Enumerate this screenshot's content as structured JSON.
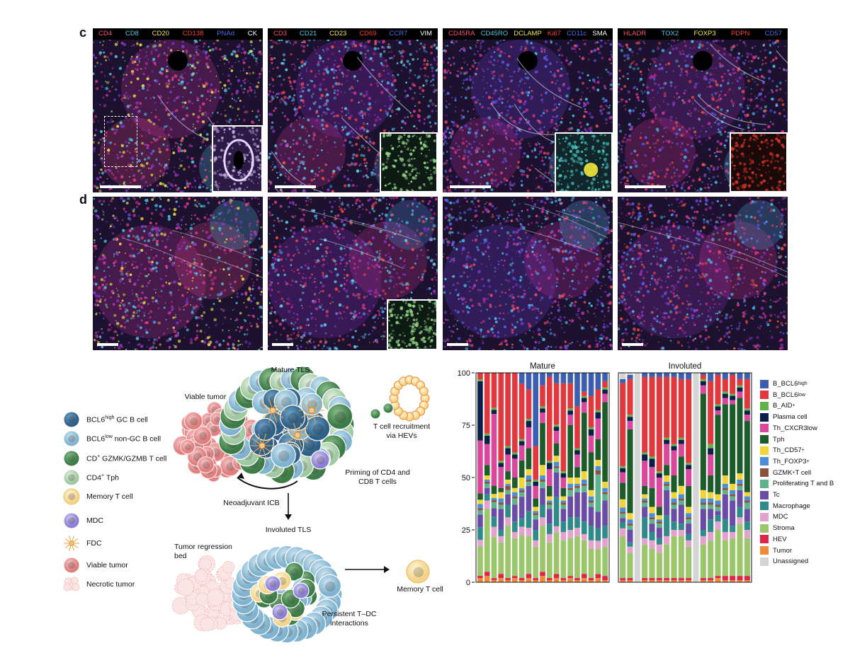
{
  "panel_labels": {
    "c": "c",
    "d": "d"
  },
  "marker_panels": [
    {
      "markers": [
        {
          "text": "CD4",
          "color": "#ff4d7a"
        },
        {
          "text": "CD8",
          "color": "#49c9e8"
        },
        {
          "text": "CD20",
          "color": "#f5e64a"
        },
        {
          "text": "CD138",
          "color": "#ff3b30"
        },
        {
          "text": "PNAd",
          "color": "#4a6cf0"
        },
        {
          "text": "CK",
          "color": "#ffffff"
        }
      ]
    },
    {
      "markers": [
        {
          "text": "CD3",
          "color": "#ff4d7a"
        },
        {
          "text": "CD21",
          "color": "#49c9e8"
        },
        {
          "text": "CD23",
          "color": "#f5e64a"
        },
        {
          "text": "CD69",
          "color": "#ff3b30"
        },
        {
          "text": "CCR7",
          "color": "#4a6cf0"
        },
        {
          "text": "VIM",
          "color": "#ffffff"
        }
      ]
    },
    {
      "markers": [
        {
          "text": "CD45RA",
          "color": "#ff4d7a"
        },
        {
          "text": "CD45RO",
          "color": "#49c9e8"
        },
        {
          "text": "DCLAMP",
          "color": "#f5e64a"
        },
        {
          "text": "Ki67",
          "color": "#ff3b30"
        },
        {
          "text": "CD11c",
          "color": "#4a6cf0"
        },
        {
          "text": "SMA",
          "color": "#ffffff"
        }
      ]
    },
    {
      "markers": [
        {
          "text": "HLADR",
          "color": "#ff4d7a"
        },
        {
          "text": "TOX2",
          "color": "#49c9e8"
        },
        {
          "text": "FOXP3",
          "color": "#f5e64a"
        },
        {
          "text": "PDPN",
          "color": "#ff3b30"
        },
        {
          "text": "CD57",
          "color": "#4a6cf0"
        }
      ]
    }
  ],
  "diagram": {
    "mature_tls": "Mature TLS",
    "viable_tumor": "Viable tumor",
    "t_cell_recruitment": "T cell recruitment\nvia HEVs",
    "priming": "Priming of CD4 and\nCD8 T cells",
    "neoadjuvant": "Neoadjuvant ICB",
    "involuted_tls": "Involuted TLS",
    "tumor_regression": "Tumor regression\nbed",
    "memory_t_cell": "Memory T cell",
    "persistent": "Persistent T–DC\ninteractions"
  },
  "cell_legend": [
    {
      "pre": "BCL6",
      "sup": "high",
      "post": " GC B cell",
      "icon": "bcl6high"
    },
    {
      "pre": "BCL6",
      "sup": "low",
      "post": " non-GC B cell",
      "icon": "bcl6low"
    },
    {
      "pre": "CD",
      "sup": "+",
      "post": " GZMK/GZMB T cell",
      "icon": "cd8"
    },
    {
      "pre": "CD4",
      "sup": "+",
      "post": " Tph",
      "icon": "tph"
    },
    {
      "pre": "Memory T cell",
      "sup": "",
      "post": "",
      "icon": "memory"
    },
    {
      "pre": "MDC",
      "sup": "",
      "post": "",
      "icon": "mdc"
    },
    {
      "pre": "FDC",
      "sup": "",
      "post": "",
      "icon": "fdc"
    },
    {
      "pre": "Viable tumor",
      "sup": "",
      "post": "",
      "icon": "viable"
    },
    {
      "pre": "Necrotic tumor",
      "sup": "",
      "post": "",
      "icon": "necrotic"
    }
  ],
  "chart_data": {
    "type": "bar",
    "stacked": true,
    "ylim": [
      0,
      100
    ],
    "yticks": [
      "0",
      "25",
      "50",
      "75",
      "100"
    ],
    "groups": [
      {
        "title": "Mature",
        "n_bars": 19
      },
      {
        "title": "Involuted",
        "n_bars": 18
      }
    ],
    "categories_legend": [
      {
        "label": "B_BCL6",
        "sup": "high",
        "color": "#3c5fb0"
      },
      {
        "label": "B_BCL6",
        "sup": "low",
        "color": "#e0383d"
      },
      {
        "label": "B_AID",
        "sup": "+",
        "color": "#5fb346"
      },
      {
        "label": "Plasma cell",
        "sup": "",
        "color": "#0c1e4a"
      },
      {
        "label": "Th_CXCR3low",
        "sup": "",
        "color": "#d9489b"
      },
      {
        "label": "Tph",
        "sup": "",
        "color": "#1e5b2a"
      },
      {
        "label": "Th_CD57",
        "sup": "+",
        "color": "#f1d538"
      },
      {
        "label": "Th_FOXP3",
        "sup": "+",
        "color": "#4a8fd6"
      },
      {
        "label": "GZMK",
        "sup": "+",
        "post": " T cell",
        "color": "#8c5240"
      },
      {
        "label": "Proliferating T and B",
        "sup": "",
        "color": "#5fb38c"
      },
      {
        "label": "Tc",
        "sup": "",
        "color": "#6a4ca6"
      },
      {
        "label": "Macrophage",
        "sup": "",
        "color": "#2f8a8a"
      },
      {
        "label": "MDC",
        "sup": "",
        "color": "#e3a2cc"
      },
      {
        "label": "Stroma",
        "sup": "",
        "color": "#9bc66b"
      },
      {
        "label": "HEV",
        "sup": "",
        "color": "#e0244a"
      },
      {
        "label": "Tumor",
        "sup": "",
        "color": "#ef8a3b"
      },
      {
        "label": "Unassigned",
        "sup": "",
        "color": "#d4d4d4"
      }
    ],
    "series_order": [
      "Tumor",
      "HEV",
      "Stroma",
      "MDC",
      "Macrophage",
      "Tc",
      "Proliferating T and B",
      "GZMK T cell",
      "Th_FOXP3",
      "Th_CD57",
      "Tph",
      "Th_CXCR3low",
      "Plasma cell",
      "B_AID",
      "B_BCL6low",
      "B_BCL6high",
      "Unassigned"
    ],
    "mature_bars": [
      [
        2,
        1,
        14,
        3,
        6,
        6,
        2,
        1,
        2,
        2,
        3,
        25,
        28,
        1,
        3,
        0,
        0
      ],
      [
        3,
        2,
        30,
        4,
        3,
        3,
        2,
        1,
        1,
        2,
        5,
        10,
        4,
        1,
        29,
        0,
        0
      ],
      [
        1,
        1,
        20,
        5,
        5,
        4,
        3,
        1,
        1,
        2,
        4,
        35,
        2,
        1,
        17,
        0,
        0
      ],
      [
        2,
        2,
        15,
        3,
        3,
        10,
        2,
        1,
        2,
        3,
        2,
        10,
        2,
        1,
        42,
        0,
        0
      ],
      [
        1,
        1,
        25,
        4,
        6,
        5,
        2,
        2,
        1,
        2,
        4,
        8,
        3,
        1,
        35,
        0,
        0
      ],
      [
        2,
        1,
        18,
        3,
        5,
        8,
        3,
        1,
        2,
        2,
        5,
        9,
        2,
        1,
        38,
        0,
        0
      ],
      [
        1,
        1,
        20,
        4,
        4,
        10,
        2,
        1,
        1,
        5,
        8,
        7,
        2,
        1,
        26,
        5,
        0
      ],
      [
        2,
        2,
        18,
        4,
        8,
        12,
        2,
        1,
        2,
        3,
        10,
        10,
        3,
        1,
        14,
        8,
        0
      ],
      [
        1,
        1,
        15,
        3,
        5,
        5,
        2,
        1,
        1,
        2,
        4,
        6,
        2,
        1,
        16,
        35,
        0
      ],
      [
        3,
        2,
        22,
        4,
        6,
        8,
        3,
        1,
        2,
        5,
        20,
        5,
        2,
        1,
        10,
        6,
        0
      ],
      [
        1,
        1,
        17,
        4,
        5,
        7,
        2,
        1,
        1,
        2,
        5,
        8,
        3,
        1,
        40,
        2,
        0
      ],
      [
        2,
        2,
        20,
        3,
        14,
        12,
        2,
        1,
        2,
        3,
        6,
        6,
        2,
        1,
        20,
        5,
        0
      ],
      [
        1,
        1,
        18,
        4,
        5,
        6,
        2,
        1,
        1,
        2,
        4,
        5,
        2,
        1,
        42,
        5,
        0
      ],
      [
        2,
        1,
        18,
        4,
        6,
        10,
        3,
        1,
        2,
        3,
        25,
        5,
        2,
        1,
        12,
        5,
        0
      ],
      [
        1,
        1,
        20,
        4,
        5,
        12,
        2,
        1,
        1,
        3,
        5,
        6,
        2,
        1,
        20,
        16,
        0
      ],
      [
        2,
        2,
        16,
        3,
        6,
        14,
        3,
        1,
        2,
        4,
        28,
        5,
        2,
        1,
        2,
        9,
        0
      ],
      [
        1,
        1,
        14,
        4,
        7,
        9,
        2,
        1,
        2,
        3,
        18,
        8,
        3,
        1,
        15,
        11,
        0
      ],
      [
        2,
        2,
        12,
        4,
        6,
        8,
        18,
        2,
        2,
        3,
        10,
        10,
        3,
        1,
        10,
        8,
        0
      ],
      [
        1,
        2,
        14,
        4,
        6,
        12,
        3,
        1,
        2,
        3,
        38,
        4,
        2,
        1,
        3,
        4,
        0
      ]
    ],
    "involuted_bars": [
      [
        1,
        1,
        20,
        4,
        3,
        2,
        2,
        1,
        2,
        4,
        8,
        5,
        2,
        1,
        40,
        2,
        3
      ],
      [
        1,
        1,
        12,
        3,
        2,
        6,
        2,
        1,
        2,
        3,
        40,
        4,
        2,
        1,
        17,
        2,
        1
      ],
      [
        0,
        0,
        0,
        0,
        0,
        0,
        0,
        0,
        0,
        0,
        0,
        0,
        0,
        0,
        0,
        0,
        100
      ],
      [
        1,
        1,
        16,
        3,
        10,
        5,
        2,
        1,
        1,
        2,
        4,
        12,
        3,
        1,
        36,
        2,
        0
      ],
      [
        1,
        1,
        14,
        4,
        4,
        4,
        2,
        1,
        2,
        3,
        9,
        10,
        4,
        1,
        38,
        2,
        0
      ],
      [
        1,
        1,
        12,
        4,
        3,
        5,
        2,
        1,
        1,
        2,
        4,
        14,
        2,
        1,
        45,
        2,
        0
      ],
      [
        1,
        1,
        16,
        4,
        10,
        12,
        2,
        1,
        1,
        3,
        5,
        10,
        2,
        1,
        29,
        2,
        0
      ],
      [
        1,
        1,
        20,
        3,
        4,
        6,
        2,
        1,
        2,
        3,
        8,
        12,
        2,
        1,
        32,
        2,
        0
      ],
      [
        1,
        1,
        20,
        3,
        3,
        9,
        2,
        1,
        2,
        4,
        14,
        6,
        2,
        1,
        28,
        3,
        0
      ],
      [
        1,
        1,
        15,
        3,
        3,
        5,
        2,
        1,
        2,
        3,
        10,
        8,
        2,
        1,
        40,
        3,
        0
      ],
      [
        0,
        0,
        0,
        0,
        0,
        0,
        0,
        0,
        0,
        0,
        0,
        0,
        0,
        0,
        0,
        0,
        100
      ],
      [
        1,
        1,
        16,
        4,
        3,
        10,
        2,
        1,
        2,
        4,
        46,
        4,
        2,
        1,
        2,
        1,
        0
      ],
      [
        1,
        1,
        18,
        4,
        6,
        5,
        2,
        1,
        2,
        3,
        8,
        10,
        3,
        2,
        30,
        4,
        0
      ],
      [
        2,
        1,
        22,
        4,
        3,
        2,
        2,
        1,
        2,
        3,
        38,
        2,
        2,
        1,
        14,
        1,
        0
      ],
      [
        1,
        2,
        17,
        4,
        6,
        12,
        2,
        1,
        2,
        4,
        34,
        3,
        2,
        1,
        6,
        3,
        0
      ],
      [
        1,
        2,
        18,
        3,
        3,
        12,
        2,
        1,
        2,
        3,
        38,
        2,
        2,
        1,
        9,
        1,
        0
      ],
      [
        1,
        2,
        25,
        3,
        5,
        8,
        2,
        1,
        2,
        3,
        36,
        3,
        2,
        1,
        3,
        3,
        0
      ],
      [
        1,
        2,
        18,
        4,
        4,
        6,
        3,
        1,
        2,
        2,
        34,
        3,
        2,
        1,
        14,
        3,
        0
      ]
    ]
  }
}
